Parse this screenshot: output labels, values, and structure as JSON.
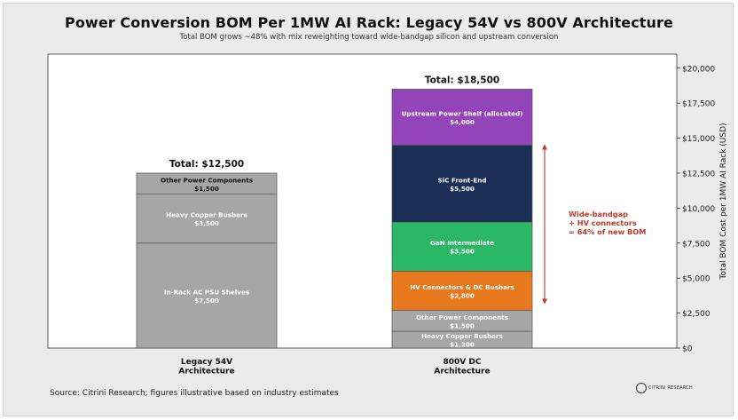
{
  "title": "Power Conversion BOM Per 1MW AI Rack: Legacy 54V vs 800V Architecture",
  "subtitle": "Total BOM grows ~48% with mix reweighting toward wide-bandgap silicon and upstream conversion",
  "source": "Source: Citrini Research; figures illustrative based on industry estimates",
  "logo_text": "CITRINI RESEARCH",
  "chart_data": {
    "type": "bar",
    "stacked": true,
    "ylabel": "Total BOM Cost per 1MW AI Rack (USD)",
    "ylim": [
      0,
      21000
    ],
    "yticks": [
      0,
      2500,
      5000,
      7500,
      10000,
      12500,
      15000,
      17500,
      20000
    ],
    "ytick_labels": [
      "$0",
      "$2,500",
      "$5,000",
      "$7,500",
      "$10,000",
      "$12,500",
      "$15,000",
      "$17,500",
      "$20,000"
    ],
    "axis_position": "right",
    "grid": false,
    "bars": [
      {
        "category": "Legacy 54V\nArchitecture",
        "total_label": "Total: $12,500",
        "segments": [
          {
            "name": "In-Rack AC PSU Shelves",
            "value": 7500,
            "label": "$7,500",
            "color": "#a6a6a6"
          },
          {
            "name": "Heavy Copper Busbars",
            "value": 3500,
            "label": "$3,500",
            "color": "#a6a6a6"
          },
          {
            "name": "Other Power Components",
            "value": 1500,
            "label": "$1,500",
            "color": "#a6a6a6"
          }
        ]
      },
      {
        "category": "800V DC\nArchitecture",
        "total_label": "Total: $18,500",
        "segments": [
          {
            "name": "Heavy Copper Busbars",
            "value": 1200,
            "label": "$1,200",
            "color": "#a6a6a6"
          },
          {
            "name": "Other Power Components",
            "value": 1500,
            "label": "$1,500",
            "color": "#a6a6a6"
          },
          {
            "name": "HV Connectors & DC Busbars",
            "value": 2800,
            "label": "$2,800",
            "color": "#e8781e"
          },
          {
            "name": "GaN Intermediate",
            "value": 3500,
            "label": "$3,500",
            "color": "#2ab866"
          },
          {
            "name": "SiC Front-End",
            "value": 5500,
            "label": "$5,500",
            "color": "#1a2e56"
          },
          {
            "name": "Upstream Power Shelf (allocated)",
            "value": 4000,
            "label": "$4,000",
            "color": "#9244b8"
          }
        ]
      }
    ],
    "annotation": {
      "lines": [
        "Wide-bandgap",
        "+ HV connectors",
        "= 64% of new BOM"
      ],
      "color": "#c0392b",
      "span": [
        3200,
        14500
      ]
    }
  }
}
